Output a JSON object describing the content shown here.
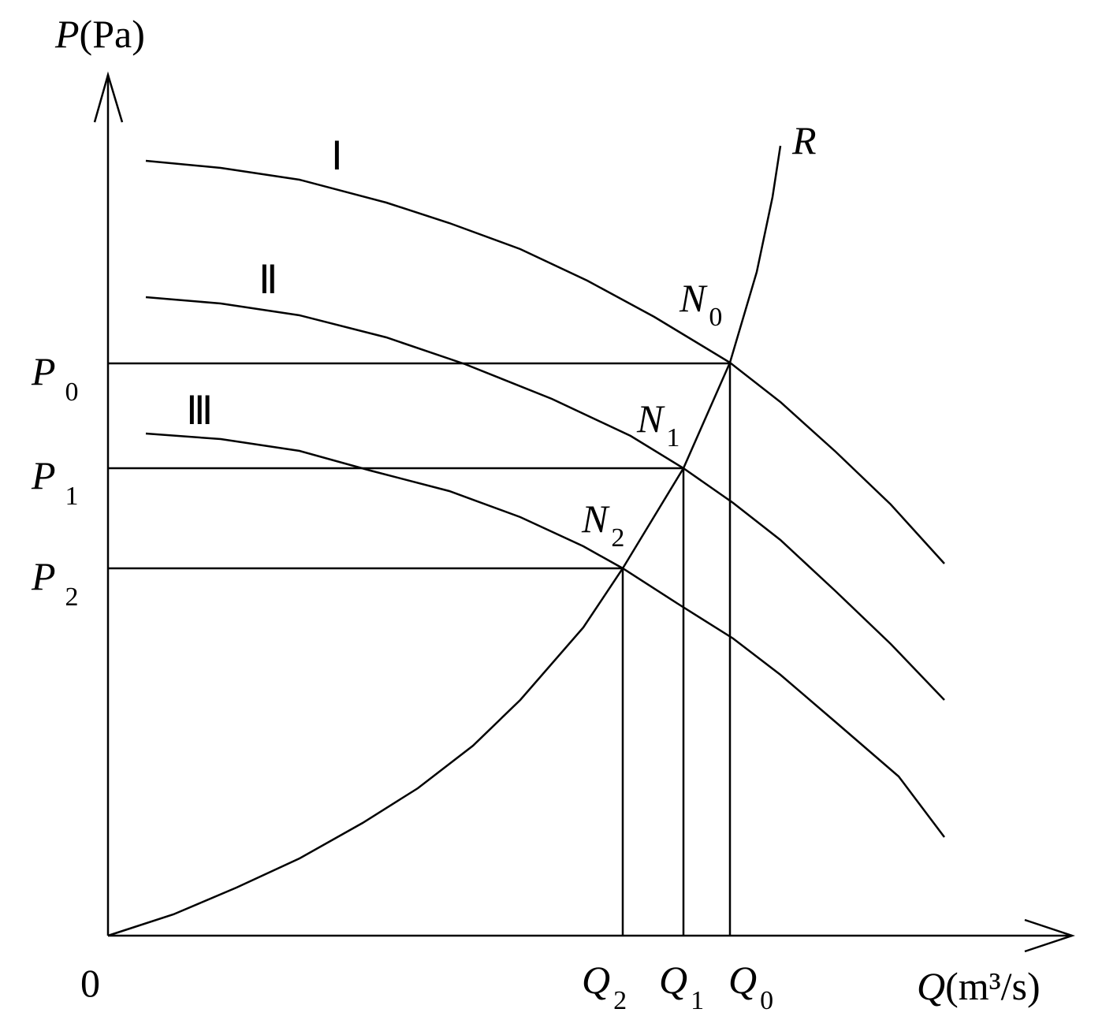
{
  "axes": {
    "y": {
      "symbol": "P",
      "unit": "(Pa)"
    },
    "x": {
      "symbol": "Q",
      "unit": "(m³/s)"
    },
    "origin": "0"
  },
  "pressure_levels": [
    {
      "symbol": "P",
      "subscript": "0"
    },
    {
      "symbol": "P",
      "subscript": "1"
    },
    {
      "symbol": "P",
      "subscript": "2"
    }
  ],
  "flow_levels": [
    {
      "symbol": "Q",
      "subscript": "2"
    },
    {
      "symbol": "Q",
      "subscript": "1"
    },
    {
      "symbol": "Q",
      "subscript": "0"
    }
  ],
  "operating_points": [
    {
      "symbol": "N",
      "subscript": "0"
    },
    {
      "symbol": "N",
      "subscript": "1"
    },
    {
      "symbol": "N",
      "subscript": "2"
    }
  ],
  "fan_curves": [
    "Ⅰ",
    "Ⅱ",
    "Ⅲ"
  ],
  "resistance_curve": "R"
}
